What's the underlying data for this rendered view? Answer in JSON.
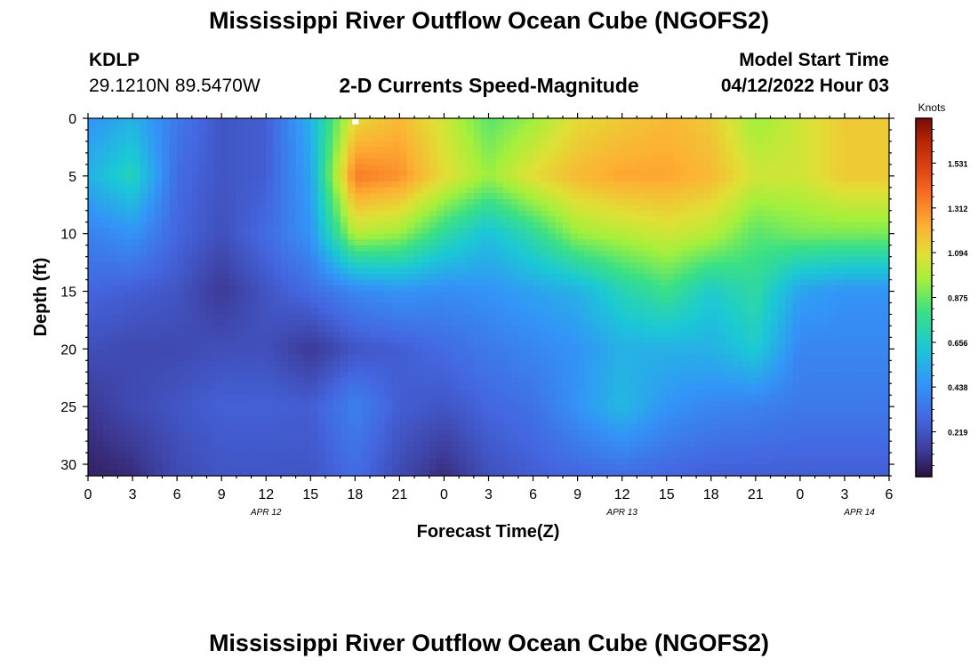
{
  "header": {
    "title": "Mississippi River Outflow Ocean Cube (NGOFS2)",
    "station_id": "KDLP",
    "coordinates": "29.1210N  89.5470W",
    "subtitle": "2-D Currents Speed-Magnitude",
    "model_start_label": "Model Start Time",
    "model_start_value": "04/12/2022 Hour 03"
  },
  "footer": {
    "title": "Mississippi River Outflow Ocean Cube (NGOFS2)"
  },
  "chart_data": {
    "type": "heatmap",
    "title": "2-D Currents Speed-Magnitude",
    "xlabel": "Forecast Time(Z)",
    "ylabel": "Depth (ft)",
    "x_range_hours": [
      0,
      54
    ],
    "y_range_ft": [
      0,
      31
    ],
    "y_inverted": true,
    "x_tick_labels": [
      "0",
      "3",
      "6",
      "9",
      "12",
      "15",
      "18",
      "21",
      "0",
      "3",
      "6",
      "9",
      "12",
      "15",
      "18",
      "21",
      "0",
      "3",
      "6"
    ],
    "date_labels": [
      {
        "label": "APR 12",
        "hour": 12
      },
      {
        "label": "APR 13",
        "hour": 36
      },
      {
        "label": "APR 14",
        "hour": 52
      }
    ],
    "y_tick_labels": [
      "0",
      "5",
      "10",
      "15",
      "20",
      "25",
      "30"
    ],
    "colorbar": {
      "unit": "Knots",
      "range": [
        0,
        1.75
      ],
      "ticks": [
        "1.531",
        "1.312",
        "1.094",
        "0.875",
        "0.656",
        "0.438",
        "0.219"
      ],
      "tick_values": [
        1.531,
        1.312,
        1.094,
        0.875,
        0.656,
        0.438,
        0.219
      ]
    },
    "grid": false,
    "now_marker_hour": 18,
    "speed_field_knots": {
      "depths_ft": [
        0,
        5,
        10,
        15,
        20,
        25,
        31
      ],
      "hours": [
        0,
        3,
        6,
        9,
        12,
        15,
        18,
        21,
        24,
        27,
        30,
        33,
        36,
        39,
        42,
        45,
        48,
        51,
        54
      ],
      "values": [
        [
          0.45,
          0.55,
          0.35,
          0.22,
          0.25,
          0.55,
          1.1,
          1.2,
          1.05,
          0.85,
          0.95,
          1.1,
          1.15,
          1.2,
          1.15,
          0.95,
          1.05,
          1.15,
          1.15
        ],
        [
          0.55,
          0.7,
          0.3,
          0.22,
          0.25,
          0.5,
          1.35,
          1.3,
          1.1,
          0.95,
          1.1,
          1.2,
          1.25,
          1.25,
          1.2,
          1.05,
          1.05,
          1.15,
          1.15
        ],
        [
          0.38,
          0.45,
          0.28,
          0.2,
          0.3,
          0.45,
          1.0,
          0.95,
          0.75,
          0.6,
          0.75,
          0.95,
          1.0,
          1.05,
          1.0,
          0.85,
          0.9,
          0.9,
          0.9
        ],
        [
          0.28,
          0.25,
          0.22,
          0.12,
          0.22,
          0.3,
          0.4,
          0.45,
          0.42,
          0.45,
          0.5,
          0.55,
          0.7,
          0.8,
          0.65,
          0.75,
          0.5,
          0.45,
          0.45
        ],
        [
          0.2,
          0.18,
          0.18,
          0.2,
          0.2,
          0.12,
          0.22,
          0.25,
          0.3,
          0.35,
          0.4,
          0.45,
          0.55,
          0.55,
          0.55,
          0.65,
          0.4,
          0.4,
          0.4
        ],
        [
          0.12,
          0.18,
          0.22,
          0.26,
          0.26,
          0.25,
          0.38,
          0.25,
          0.22,
          0.28,
          0.32,
          0.45,
          0.58,
          0.45,
          0.4,
          0.38,
          0.35,
          0.35,
          0.35
        ],
        [
          0.05,
          0.08,
          0.18,
          0.22,
          0.22,
          0.22,
          0.3,
          0.18,
          0.08,
          0.2,
          0.25,
          0.28,
          0.3,
          0.28,
          0.25,
          0.25,
          0.25,
          0.25,
          0.25
        ]
      ]
    }
  }
}
